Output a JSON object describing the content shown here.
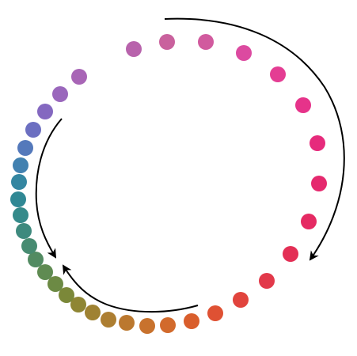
{
  "diagram": {
    "dots": [
      {
        "color": "#c9619d"
      },
      {
        "color": "#d15a9e"
      },
      {
        "color": "#dc4aa0"
      },
      {
        "color": "#e43d93"
      },
      {
        "color": "#e6338a"
      },
      {
        "color": "#e62b7c"
      },
      {
        "color": "#e5296e"
      },
      {
        "color": "#e52a63"
      },
      {
        "color": "#e32f55"
      },
      {
        "color": "#e2394a"
      },
      {
        "color": "#e1443d"
      },
      {
        "color": "#df5133"
      },
      {
        "color": "#d95e2c"
      },
      {
        "color": "#d26a2c"
      },
      {
        "color": "#c8722d"
      },
      {
        "color": "#bb782f"
      },
      {
        "color": "#ad7e31"
      },
      {
        "color": "#9f8232"
      },
      {
        "color": "#8f8634"
      },
      {
        "color": "#7b8839"
      },
      {
        "color": "#6c8a44"
      },
      {
        "color": "#5f8b52"
      },
      {
        "color": "#528b62"
      },
      {
        "color": "#478b71"
      },
      {
        "color": "#3e8a7e"
      },
      {
        "color": "#358a8a"
      },
      {
        "color": "#308894"
      },
      {
        "color": "#3486a1"
      },
      {
        "color": "#4281b0"
      },
      {
        "color": "#5479bb"
      },
      {
        "color": "#6c6fc1"
      },
      {
        "color": "#8468c0"
      },
      {
        "color": "#9a67bc"
      },
      {
        "color": "#a865b6"
      },
      {
        "color": "#b863ac"
      }
    ],
    "arrows": [
      {
        "name": "arrow-right-clockwise"
      },
      {
        "name": "arrow-left-down"
      },
      {
        "name": "arrow-bottom-left"
      }
    ],
    "arrow_color": "#000000"
  }
}
